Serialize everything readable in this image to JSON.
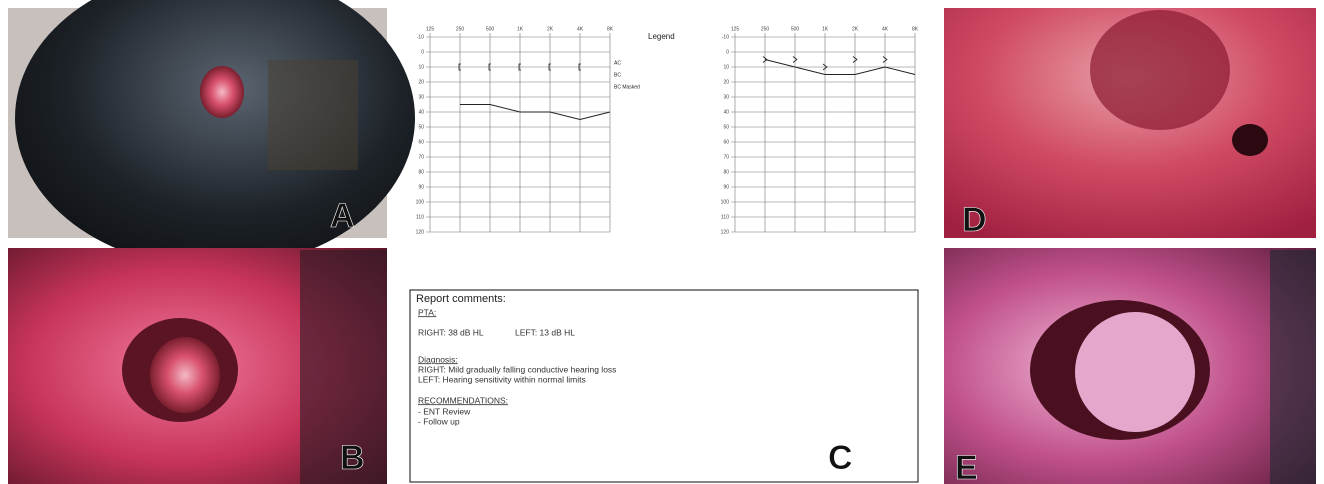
{
  "panels": [
    "A",
    "B",
    "C",
    "D",
    "E"
  ],
  "legend": {
    "title": "Legend",
    "items": [
      "AC",
      "BC",
      "BC Masked"
    ]
  },
  "audiograms": [
    {
      "categories": [
        "125",
        "250",
        "500",
        "1K",
        "2K",
        "4K",
        "8K"
      ],
      "ylim": [
        -10,
        120
      ],
      "yticks": [
        -10,
        0,
        10,
        20,
        30,
        40,
        50,
        60,
        70,
        80,
        90,
        100,
        110,
        120
      ],
      "ac": [
        null,
        35,
        35,
        40,
        40,
        45,
        40
      ],
      "bc": [
        null,
        10,
        10,
        10,
        10,
        10,
        null
      ]
    },
    {
      "categories": [
        "125",
        "250",
        "500",
        "1K",
        "2K",
        "4K",
        "8K"
      ],
      "ylim": [
        -10,
        120
      ],
      "yticks": [
        -10,
        0,
        10,
        20,
        30,
        40,
        50,
        60,
        70,
        80,
        90,
        100,
        110,
        120
      ],
      "ac": [
        null,
        5,
        10,
        15,
        15,
        10,
        15
      ],
      "bc": [
        null,
        5,
        5,
        10,
        5,
        5,
        null
      ]
    }
  ],
  "report": {
    "title": "Report comments:",
    "pta_heading": "PTA:",
    "pta_right": "RIGHT:  38 dB HL",
    "pta_left": "LEFT:  13 dB HL",
    "diagnosis_heading": "Diagnosis:",
    "diagnosis_right": "RIGHT: Mild gradually falling conductive hearing loss",
    "diagnosis_left": "LEFT: Hearing sensitivity within normal limits",
    "recommendations_heading": "RECOMMENDATIONS:",
    "recommendations": [
      "- ENT Review",
      "- Follow up"
    ]
  }
}
